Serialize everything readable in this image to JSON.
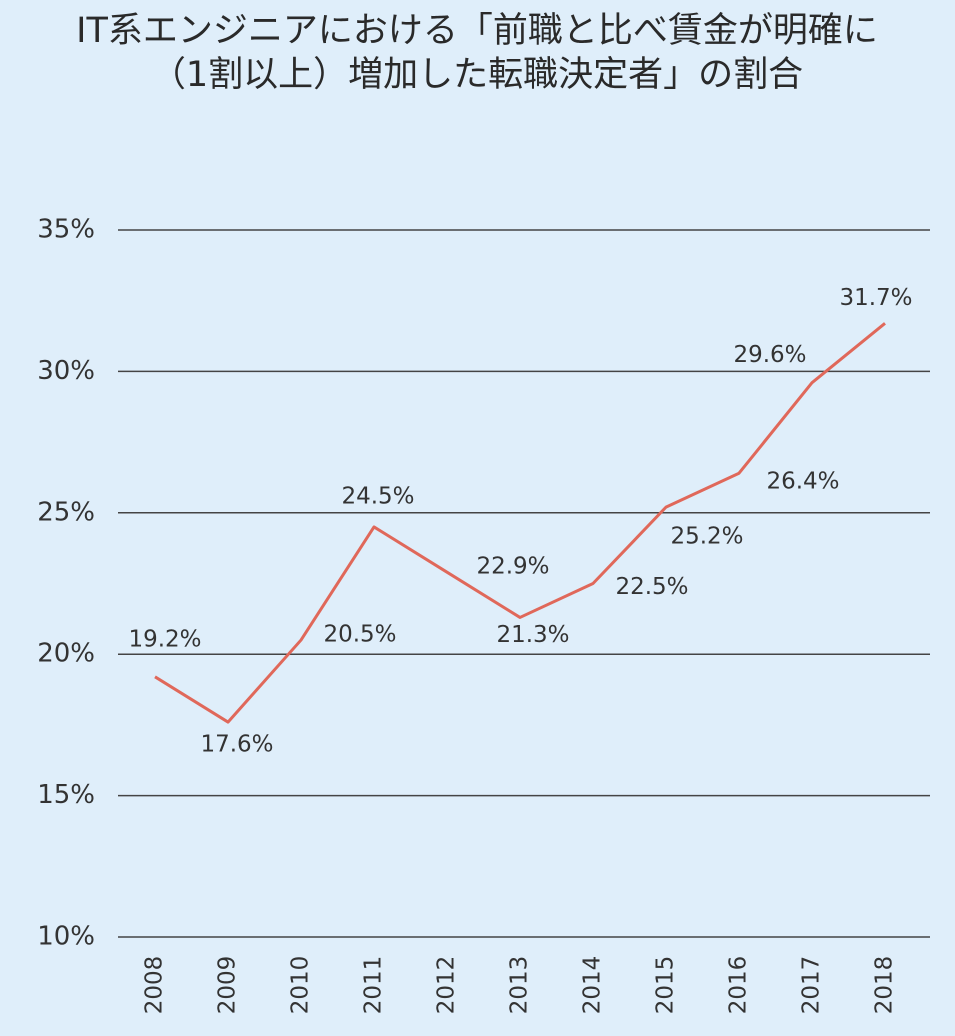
{
  "chart_data": {
    "type": "line",
    "title": [
      "IT系エンジニアにおける「前職と比べ賃金が明確に",
      "（1割以上）増加した転職決定者」の割合"
    ],
    "categories": [
      "2008",
      "2009",
      "2010",
      "2011",
      "2012",
      "2013",
      "2014",
      "2015",
      "2016",
      "2017",
      "2018"
    ],
    "values": [
      19.2,
      17.6,
      20.5,
      24.5,
      22.9,
      21.3,
      22.5,
      25.2,
      26.4,
      29.6,
      31.7
    ],
    "value_labels": [
      "19.2%",
      "17.6%",
      "20.5%",
      "24.5%",
      "22.9%",
      "21.3%",
      "22.5%",
      "25.2%",
      "26.4%",
      "29.6%",
      "31.7%"
    ],
    "color": "#e0685a",
    "ylim": [
      10,
      35
    ],
    "yticks": [
      {
        "value": 10,
        "label": "10%"
      },
      {
        "value": 15,
        "label": "15%"
      },
      {
        "value": 20,
        "label": "20%"
      },
      {
        "value": 25,
        "label": "25%"
      },
      {
        "value": 30,
        "label": "30%"
      },
      {
        "value": 35,
        "label": "35%"
      }
    ],
    "grid": true
  }
}
